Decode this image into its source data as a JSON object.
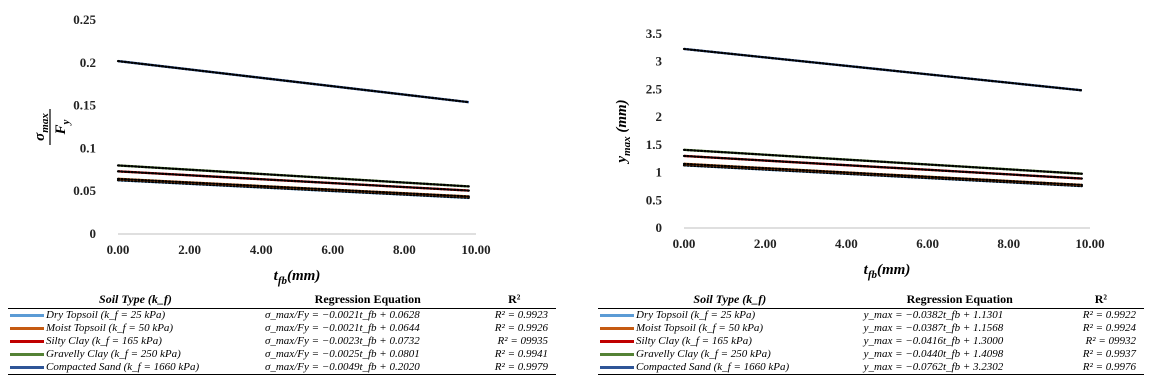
{
  "chart_data": [
    {
      "type": "line",
      "xlabel": "t_fb(mm)",
      "ylabel": "σ_max / F_y",
      "xlim": [
        0,
        10
      ],
      "ylim": [
        0,
        0.25
      ],
      "xticks": [
        "0.00",
        "2.00",
        "4.00",
        "6.00",
        "8.00",
        "10.00"
      ],
      "yticks": [
        "0",
        "0.05",
        "0.1",
        "0.15",
        "0.2",
        "0.25"
      ],
      "x": [
        0,
        9.8
      ],
      "trendline": "dotted black",
      "series": [
        {
          "name": "Dry Topsoil (k_f = 25 kPa)",
          "color": "#5b9bd5",
          "values": [
            0.0628,
            0.0422
          ],
          "equation": "σ_max/Fy = −0.0021t_fb + 0.0628",
          "r2": "R² = 0.9923"
        },
        {
          "name": "Moist Topsoil (k_f = 50 kPa)",
          "color": "#c55a11",
          "values": [
            0.0644,
            0.0438
          ],
          "equation": "σ_max/Fy = −0.0021t_fb + 0.0644",
          "r2": "R² = 0.9926"
        },
        {
          "name": "Silty Clay (k_f = 165 kPa)",
          "color": "#c00000",
          "values": [
            0.0732,
            0.0507
          ],
          "equation": "σ_max/Fy = −0.0023t_fb + 0.0732",
          "r2": "R² = 09935"
        },
        {
          "name": "Gravelly Clay (k_f = 250 kPa)",
          "color": "#548235",
          "values": [
            0.0801,
            0.0556
          ],
          "equation": "σ_max/Fy = −0.0025t_fb + 0.0801",
          "r2": "R² = 0.9941"
        },
        {
          "name": "Compacted Sand (k_f = 1660 kPa)",
          "color": "#2e5597",
          "values": [
            0.202,
            0.154
          ],
          "equation": "σ_max/Fy = −0.0049t_fb + 0.2020",
          "r2": "R² = 0.9979"
        }
      ]
    },
    {
      "type": "line",
      "xlabel": "t_fb(mm)",
      "ylabel": "y_max (mm)",
      "xlim": [
        0,
        10
      ],
      "ylim": [
        0,
        3.5
      ],
      "xticks": [
        "0.00",
        "2.00",
        "4.00",
        "6.00",
        "8.00",
        "10.00"
      ],
      "yticks": [
        "0",
        "0.5",
        "1",
        "1.5",
        "2",
        "2.5",
        "3",
        "3.5"
      ],
      "x": [
        0,
        9.8
      ],
      "trendline": "dotted black",
      "series": [
        {
          "name": "Dry Topsoil (k_f = 25 kPa)",
          "color": "#5b9bd5",
          "values": [
            1.1301,
            0.7557
          ],
          "equation": "y_max = −0.0382t_fb + 1.1301",
          "r2": "R² = 0.9922"
        },
        {
          "name": "Moist Topsoil (k_f = 50 kPa)",
          "color": "#c55a11",
          "values": [
            1.1568,
            0.7775
          ],
          "equation": "y_max = −0.0387t_fb + 1.1568",
          "r2": "R² = 0.9924"
        },
        {
          "name": "Silty Clay (k_f = 165 kPa)",
          "color": "#c00000",
          "values": [
            1.3,
            0.8923
          ],
          "equation": "y_max = −0.0416t_fb + 1.3000",
          "r2": "R² = 09932"
        },
        {
          "name": "Gravelly Clay (k_f = 250 kPa)",
          "color": "#548235",
          "values": [
            1.4098,
            0.9786
          ],
          "equation": "y_max = −0.0440t_fb + 1.4098",
          "r2": "R² = 0.9937"
        },
        {
          "name": "Compacted Sand (k_f = 1660 kPa)",
          "color": "#2e5597",
          "values": [
            3.2302,
            2.4834
          ],
          "equation": "y_max = −0.0762t_fb + 3.2302",
          "r2": "R² = 0.9976"
        }
      ]
    }
  ],
  "legend_headers": {
    "soil": "Soil Type (k_f)",
    "equation": "Regression Equation",
    "r2": "R²"
  }
}
